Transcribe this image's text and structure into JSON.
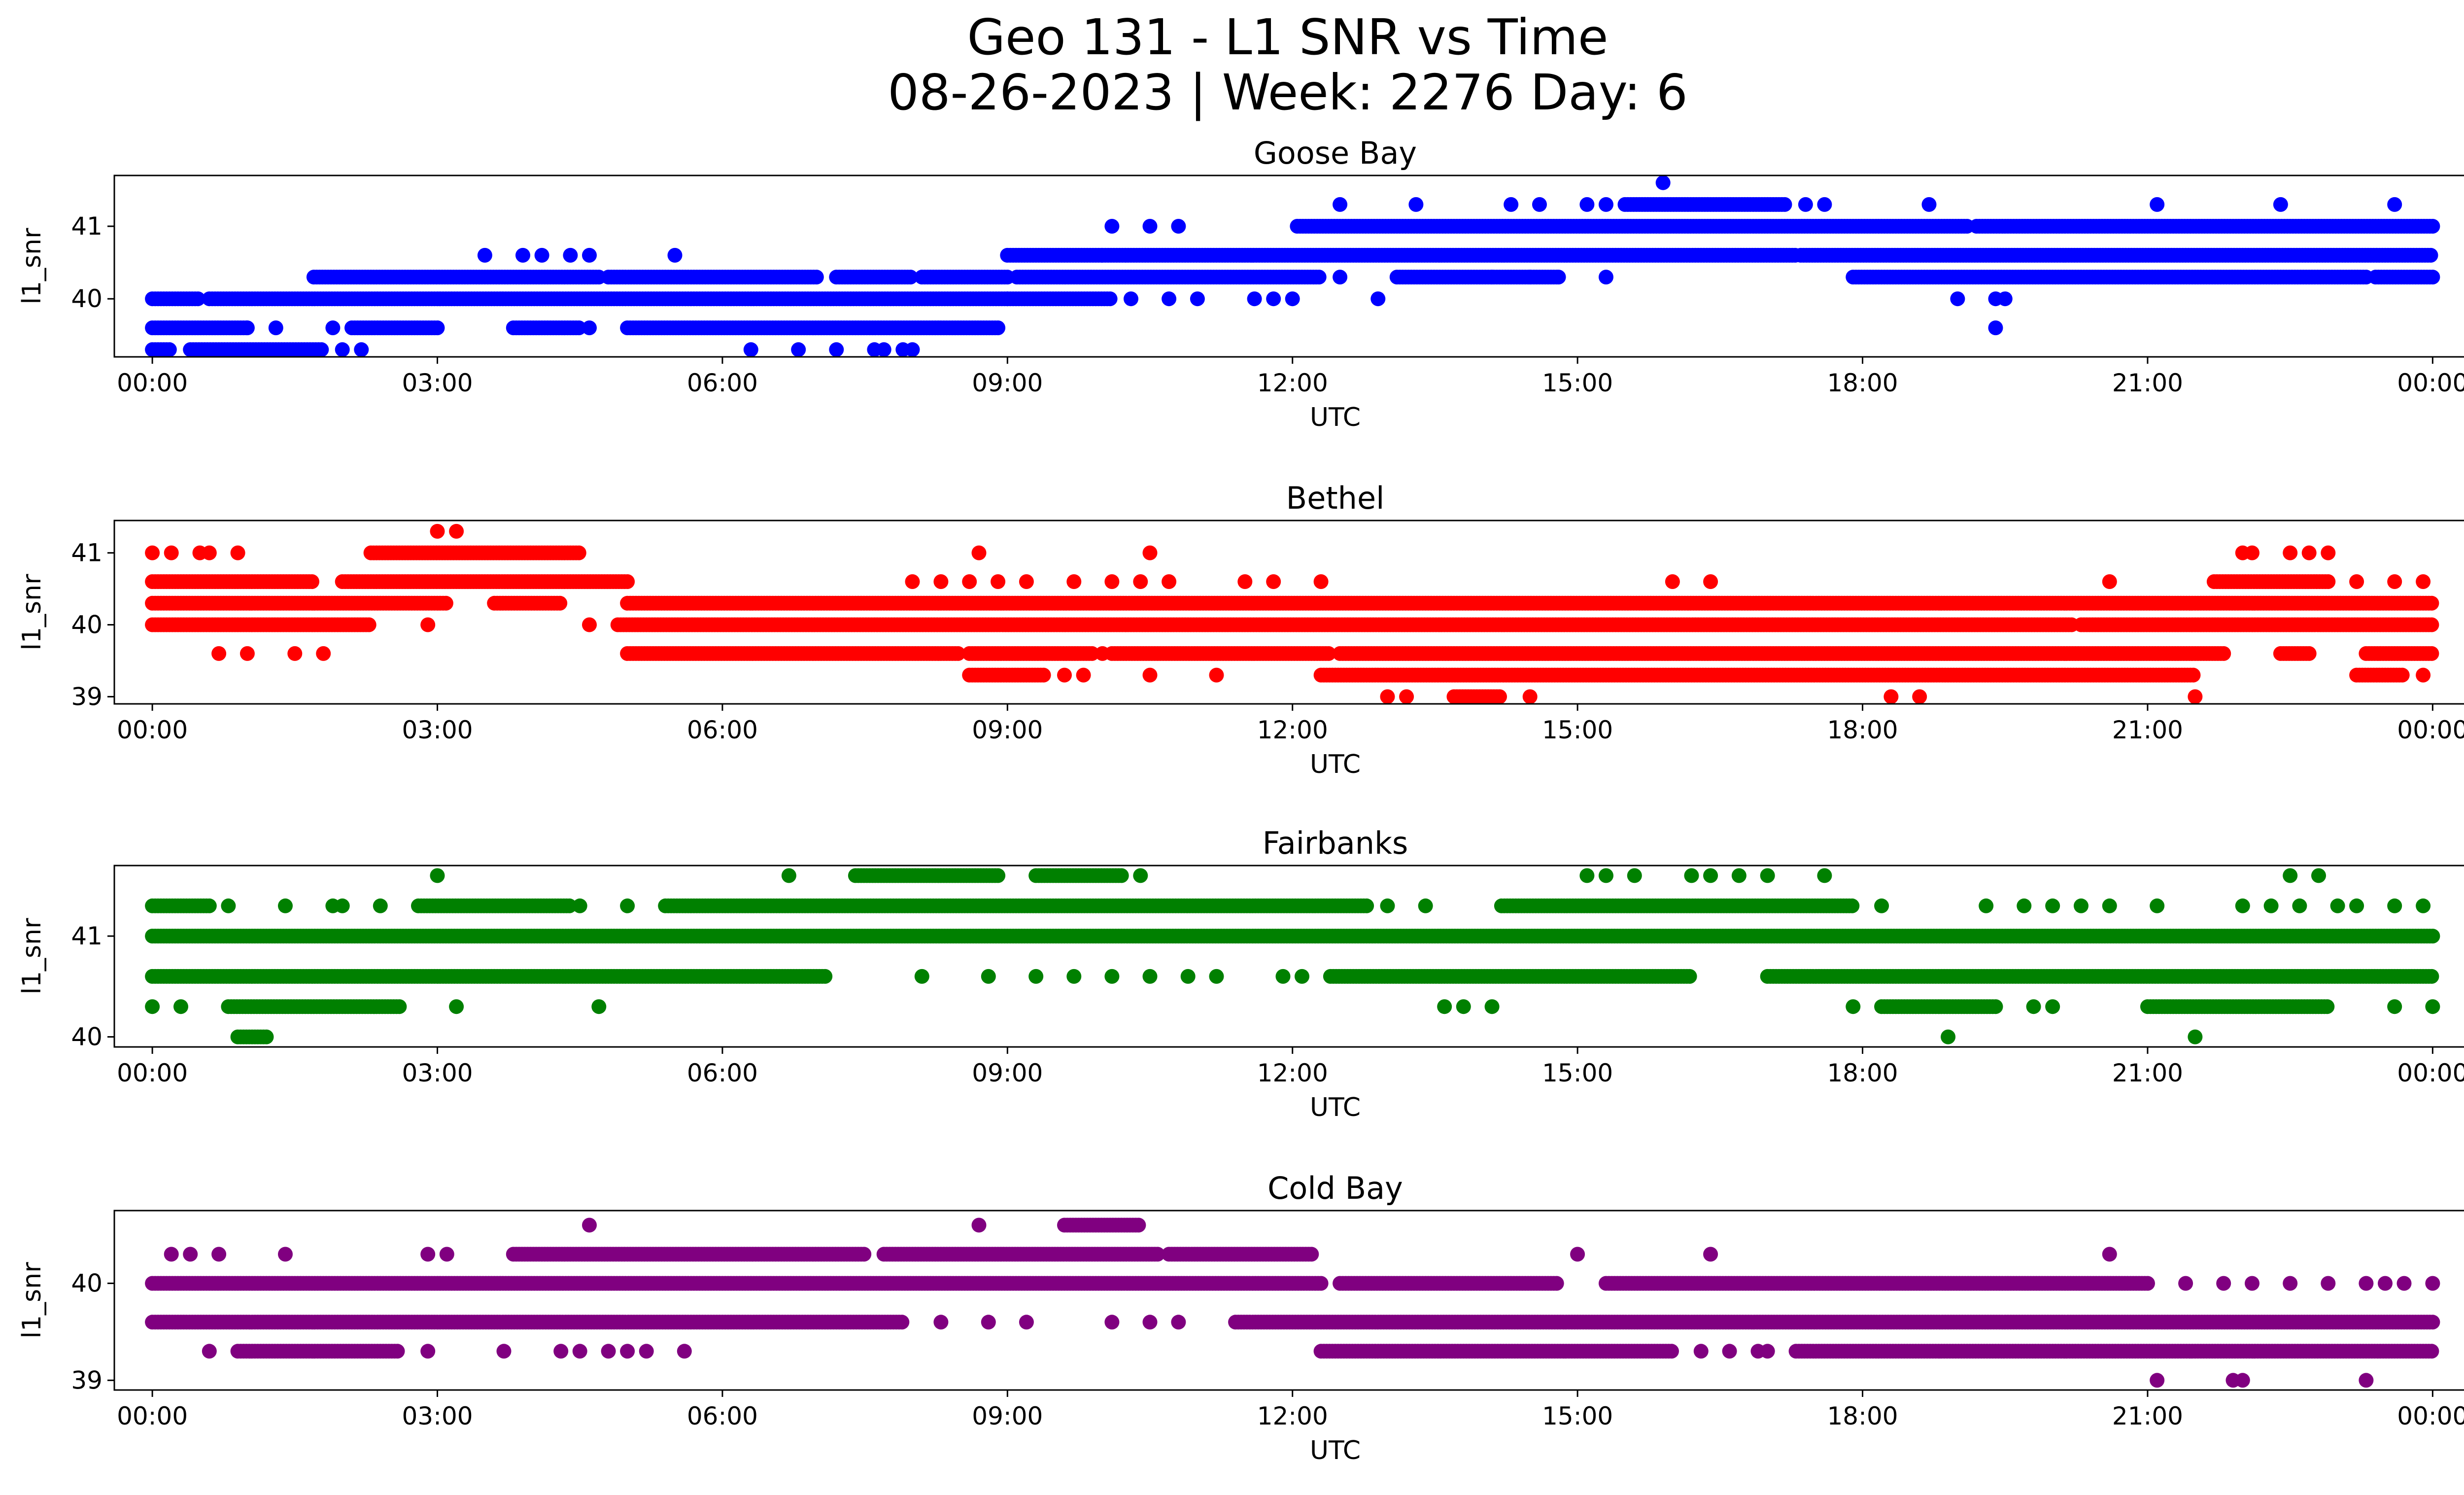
{
  "figure": {
    "title": "Geo 131 - L1 SNR vs Time",
    "subtitle": "08-26-2023 | Week: 2276 Day: 6"
  },
  "chart_data": [
    {
      "type": "scatter",
      "title": "Goose Bay",
      "xlabel": "UTC",
      "ylabel": "l1_snr",
      "xticks": [
        "00:00",
        "03:00",
        "06:00",
        "09:00",
        "12:00",
        "15:00",
        "18:00",
        "21:00",
        "00:00"
      ],
      "yticks": [
        40,
        41
      ],
      "xlim": [
        -0.4,
        25.3
      ],
      "ylim": [
        39.2,
        41.7
      ],
      "color": "#0000ff",
      "series": [
        {
          "y": 41.6,
          "segments": [],
          "points": [
            15.9
          ]
        },
        {
          "y": 41.3,
          "segments": [
            [
              15.5,
              17.2
            ]
          ],
          "points": [
            12.5,
            13.3,
            14.3,
            14.6,
            15.1,
            15.3,
            17.4,
            17.6,
            18.7,
            21.1,
            22.4,
            23.6
          ]
        },
        {
          "y": 41.0,
          "segments": [
            [
              12.05,
              19.1
            ],
            [
              19.2,
              24.0
            ]
          ],
          "points": [
            10.1,
            10.5,
            10.8
          ]
        },
        {
          "y": 40.6,
          "segments": [
            [
              9.0,
              10.0
            ],
            [
              10.0,
              17.3
            ],
            [
              17.35,
              24.0
            ]
          ],
          "points": [
            3.5,
            3.9,
            4.1,
            4.4,
            4.6,
            5.5
          ]
        },
        {
          "y": 40.3,
          "segments": [
            [
              1.7,
              4.7
            ],
            [
              4.8,
              7.0
            ],
            [
              7.2,
              8.0
            ],
            [
              8.1,
              9.0
            ],
            [
              9.1,
              12.3
            ],
            [
              13.1,
              14.8
            ],
            [
              17.9,
              23.3
            ],
            [
              23.4,
              24.0
            ]
          ],
          "points": [
            12.5,
            14.1,
            14.5,
            14.8,
            15.3
          ]
        },
        {
          "y": 40.0,
          "segments": [
            [
              0.0,
              0.5
            ],
            [
              0.6,
              9.0
            ],
            [
              9.0,
              10.1
            ]
          ],
          "points": [
            10.3,
            10.7,
            11.0,
            11.6,
            11.8,
            12.0,
            12.9,
            19.0,
            19.4,
            19.5
          ]
        },
        {
          "y": 39.6,
          "segments": [
            [
              0.0,
              1.0
            ],
            [
              2.1,
              3.0
            ],
            [
              3.8,
              4.5
            ],
            [
              5.0,
              8.9
            ]
          ],
          "points": [
            1.0,
            1.3,
            1.9,
            4.6
          ]
        },
        {
          "y": 39.3,
          "segments": [
            [
              0.0,
              0.2
            ],
            [
              0.4,
              1.8
            ]
          ],
          "points": [
            2.0,
            2.2,
            6.3,
            6.8,
            7.2,
            7.6,
            7.7,
            7.9,
            8.0
          ]
        },
        {
          "y": 39.6,
          "segments": [],
          "points": [
            19.4
          ]
        }
      ]
    },
    {
      "type": "scatter",
      "title": "Bethel",
      "xlabel": "UTC",
      "ylabel": "l1_snr",
      "xticks": [
        "00:00",
        "03:00",
        "06:00",
        "09:00",
        "12:00",
        "15:00",
        "18:00",
        "21:00",
        "00:00"
      ],
      "yticks": [
        39,
        40,
        41
      ],
      "xlim": [
        -0.4,
        25.3
      ],
      "ylim": [
        38.9,
        41.45
      ],
      "color": "#ff0000",
      "series": [
        {
          "y": 41.3,
          "segments": [],
          "points": [
            3.0,
            3.2
          ]
        },
        {
          "y": 41.0,
          "segments": [
            [
              2.3,
              4.5
            ]
          ],
          "points": [
            0.0,
            0.2,
            0.5,
            0.6,
            0.9,
            8.7,
            10.5,
            22.0,
            22.1,
            22.5,
            22.7,
            22.9
          ]
        },
        {
          "y": 40.6,
          "segments": [
            [
              0.0,
              1.7
            ],
            [
              2.0,
              5.0
            ],
            [
              21.7,
              22.9
            ]
          ],
          "points": [
            8.0,
            8.3,
            8.6,
            8.9,
            9.2,
            9.7,
            10.1,
            10.4,
            10.7,
            11.5,
            11.8,
            12.3,
            16.0,
            16.4,
            20.6,
            23.2,
            23.6,
            23.9
          ]
        },
        {
          "y": 40.3,
          "segments": [
            [
              0.0,
              3.1
            ],
            [
              3.6,
              4.3
            ],
            [
              5.0,
              24.0
            ]
          ],
          "points": []
        },
        {
          "y": 40.0,
          "segments": [
            [
              0.0,
              2.3
            ],
            [
              4.9,
              20.2
            ],
            [
              20.3,
              24.0
            ]
          ],
          "points": [
            2.9,
            4.6
          ]
        },
        {
          "y": 39.6,
          "segments": [
            [
              5.0,
              8.5
            ],
            [
              8.6,
              9.9
            ],
            [
              10.1,
              12.4
            ],
            [
              12.5,
              21.8
            ],
            [
              22.4,
              22.7
            ],
            [
              23.3,
              24.0
            ]
          ],
          "points": [
            0.7,
            1.0,
            1.5,
            1.8,
            10.0
          ]
        },
        {
          "y": 39.3,
          "segments": [
            [
              8.6,
              9.4
            ],
            [
              12.3,
              21.5
            ],
            [
              23.2,
              23.7
            ]
          ],
          "points": [
            9.6,
            9.8,
            10.5,
            11.2,
            23.9
          ]
        },
        {
          "y": 39.0,
          "segments": [
            [
              13.7,
              14.2
            ]
          ],
          "points": [
            13.0,
            13.2,
            14.5,
            18.3,
            18.6,
            21.5
          ]
        }
      ]
    },
    {
      "type": "scatter",
      "title": "Fairbanks",
      "xlabel": "UTC",
      "ylabel": "l1_snr",
      "xticks": [
        "00:00",
        "03:00",
        "06:00",
        "09:00",
        "12:00",
        "15:00",
        "18:00",
        "21:00",
        "00:00"
      ],
      "yticks": [
        40,
        41
      ],
      "xlim": [
        -0.4,
        25.3
      ],
      "ylim": [
        39.9,
        41.7
      ],
      "color": "#008000",
      "series": [
        {
          "y": 41.6,
          "segments": [
            [
              7.4,
              8.9
            ],
            [
              9.3,
              10.2
            ]
          ],
          "points": [
            3.0,
            6.7,
            10.4,
            15.1,
            15.3,
            15.6,
            16.2,
            16.4,
            16.7,
            17.0,
            17.6,
            22.5,
            22.8
          ]
        },
        {
          "y": 41.3,
          "segments": [
            [
              0.0,
              0.6
            ],
            [
              2.8,
              4.4
            ],
            [
              5.4,
              12.8
            ],
            [
              14.2,
              17.9
            ]
          ],
          "points": [
            0.8,
            1.4,
            1.9,
            2.0,
            2.4,
            4.5,
            5.0,
            13.0,
            13.4,
            18.2,
            19.3,
            19.7,
            20.0,
            20.3,
            20.6,
            21.1,
            22.0,
            22.3,
            22.6,
            23.0,
            23.2,
            23.6,
            23.9
          ]
        },
        {
          "y": 41.0,
          "segments": [
            [
              0.0,
              24.0
            ]
          ],
          "points": []
        },
        {
          "y": 40.6,
          "segments": [
            [
              0.0,
              7.1
            ],
            [
              12.4,
              16.2
            ],
            [
              17.0,
              24.0
            ]
          ],
          "points": [
            8.1,
            8.8,
            9.3,
            9.7,
            10.1,
            10.5,
            10.9,
            11.2,
            11.9,
            12.1
          ]
        },
        {
          "y": 40.3,
          "segments": [
            [
              0.8,
              2.6
            ],
            [
              18.2,
              19.4
            ],
            [
              21.0,
              22.9
            ]
          ],
          "points": [
            0.0,
            0.3,
            3.2,
            4.7,
            13.6,
            13.8,
            14.1,
            17.9,
            19.8,
            20.0,
            23.6,
            24.0
          ]
        },
        {
          "y": 40.0,
          "segments": [
            [
              0.9,
              1.2
            ]
          ],
          "points": [
            18.9,
            21.5
          ]
        }
      ]
    },
    {
      "type": "scatter",
      "title": "Cold Bay",
      "xlabel": "UTC",
      "ylabel": "l1_snr",
      "xticks": [
        "00:00",
        "03:00",
        "06:00",
        "09:00",
        "12:00",
        "15:00",
        "18:00",
        "21:00",
        "00:00"
      ],
      "yticks": [
        39,
        40
      ],
      "xlim": [
        -0.4,
        25.3
      ],
      "ylim": [
        38.9,
        40.75
      ],
      "color": "#800080",
      "series": [
        {
          "y": 40.6,
          "segments": [
            [
              9.6,
              10.4
            ]
          ],
          "points": [
            4.6,
            8.7
          ]
        },
        {
          "y": 40.3,
          "segments": [
            [
              3.8,
              7.5
            ],
            [
              7.7,
              10.6
            ],
            [
              10.7,
              12.2
            ]
          ],
          "points": [
            0.2,
            0.4,
            0.7,
            1.4,
            2.9,
            3.1,
            15.0,
            16.4,
            20.6
          ]
        },
        {
          "y": 40.0,
          "segments": [
            [
              0.0,
              12.3
            ],
            [
              12.5,
              14.8
            ],
            [
              15.3,
              21.0
            ]
          ],
          "points": [
            22.5,
            21.4,
            21.8,
            22.1,
            22.9,
            23.3,
            23.5,
            23.7,
            24.0
          ]
        },
        {
          "y": 39.6,
          "segments": [
            [
              0.0,
              7.9
            ],
            [
              11.4,
              24.0
            ]
          ],
          "points": [
            8.3,
            8.8,
            9.2,
            10.1,
            10.5,
            10.8
          ]
        },
        {
          "y": 39.3,
          "segments": [
            [
              0.9,
              2.6
            ],
            [
              12.3,
              16.0
            ],
            [
              17.3,
              24.0
            ]
          ],
          "points": [
            0.6,
            2.9,
            3.7,
            4.3,
            4.5,
            4.8,
            5.0,
            5.2,
            5.6,
            16.3,
            16.6,
            16.9,
            17.0
          ]
        },
        {
          "y": 39.0,
          "segments": [],
          "points": [
            21.1,
            21.9,
            22.0,
            23.3
          ]
        }
      ]
    }
  ]
}
